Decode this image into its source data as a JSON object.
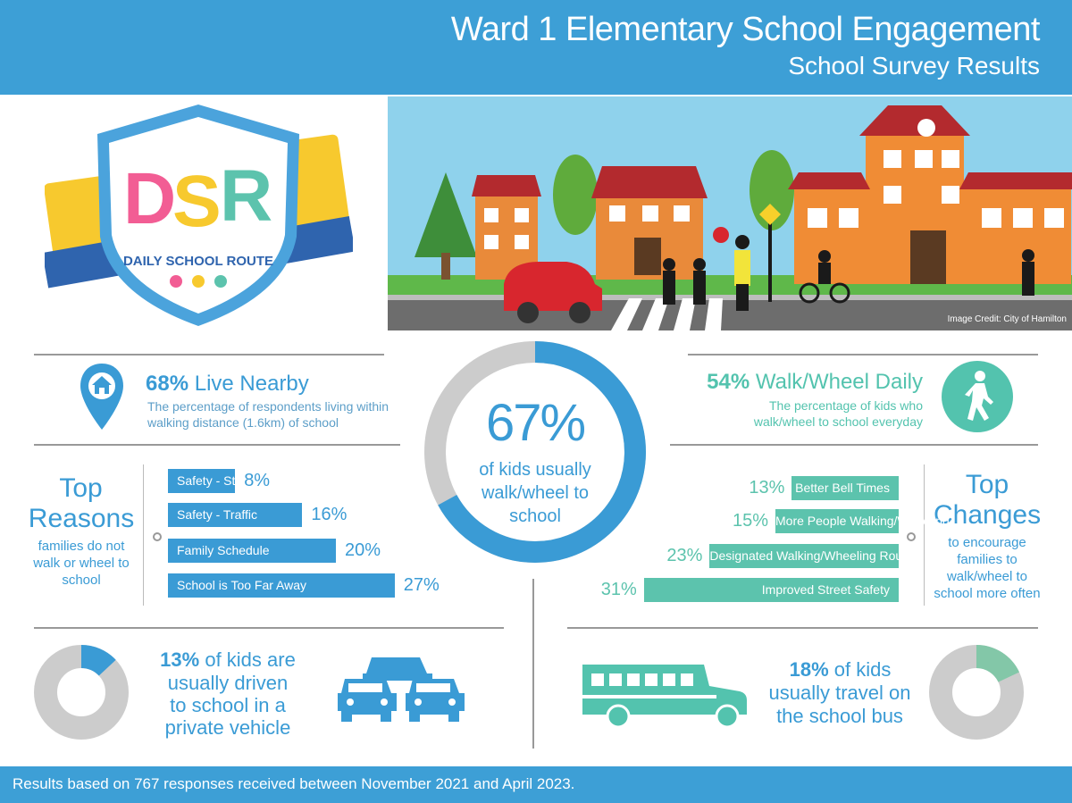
{
  "header": {
    "title": "Ward 1 Elementary School Engagement",
    "subtitle": "School Survey Results"
  },
  "logo": {
    "letters": "DSR",
    "name": "DAILY SCHOOL ROUTE"
  },
  "illustration": {
    "credit": "Image Credit: City of Hamilton"
  },
  "live_nearby": {
    "pct": "68%",
    "title": "Live Nearby",
    "desc_line1": "The percentage of respondents living within",
    "desc_line2": "walking distance (1.6km) of school"
  },
  "walk_daily": {
    "pct": "54%",
    "title": "Walk/Wheel Daily",
    "desc_line1": "The percentage of kids who",
    "desc_line2": "walk/wheel to school everyday"
  },
  "center": {
    "pct": "67%",
    "value": 67,
    "line1": "of kids usually",
    "line2": "walk/wheel to",
    "line3": "school"
  },
  "top_reasons": {
    "title1": "Top",
    "title2": "Reasons",
    "sub1": "families do not",
    "sub2": "walk or wheel to",
    "sub3": "school",
    "items": [
      {
        "label": "Safety - Strangers",
        "pct": "8%",
        "value": 8
      },
      {
        "label": "Safety - Traffic",
        "pct": "16%",
        "value": 16
      },
      {
        "label": "Family Schedule",
        "pct": "20%",
        "value": 20
      },
      {
        "label": "School is Too Far Away",
        "pct": "27%",
        "value": 27
      }
    ]
  },
  "top_changes": {
    "title1": "Top",
    "title2": "Changes",
    "sub1": "to encourage",
    "sub2": "families to",
    "sub3": "walk/wheel to",
    "sub4": "school more often",
    "items": [
      {
        "label": "Better Bell Times",
        "pct": "13%",
        "value": 13
      },
      {
        "label": "More People Walking/Wheeling",
        "pct": "15%",
        "value": 15
      },
      {
        "label": "Designated Walking/Wheeling Routes",
        "pct": "23%",
        "value": 23
      },
      {
        "label": "Improved Street Safety",
        "pct": "31%",
        "value": 31
      }
    ]
  },
  "driven": {
    "pct": "13%",
    "value": 13,
    "line1": "of kids are",
    "line2": "usually driven",
    "line3": "to school in a",
    "line4": "private vehicle"
  },
  "bus": {
    "pct": "18%",
    "value": 18,
    "line1": "of kids",
    "line2": "usually travel on",
    "line3": "the school bus"
  },
  "footer": {
    "text": "Results based on 767 responses received between November 2021 and April 2023."
  },
  "colors": {
    "blue": "#3a9bd5",
    "teal": "#5cc3ad",
    "grey": "#cccccc"
  }
}
